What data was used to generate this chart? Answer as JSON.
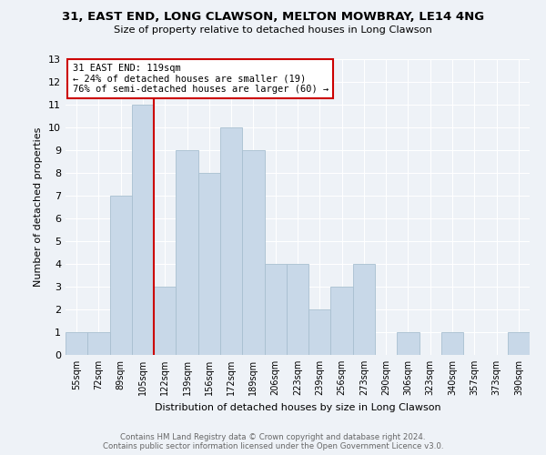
{
  "title": "31, EAST END, LONG CLAWSON, MELTON MOWBRAY, LE14 4NG",
  "subtitle": "Size of property relative to detached houses in Long Clawson",
  "xlabel": "Distribution of detached houses by size in Long Clawson",
  "ylabel": "Number of detached properties",
  "bar_labels": [
    "55sqm",
    "72sqm",
    "89sqm",
    "105sqm",
    "122sqm",
    "139sqm",
    "156sqm",
    "172sqm",
    "189sqm",
    "206sqm",
    "223sqm",
    "239sqm",
    "256sqm",
    "273sqm",
    "290sqm",
    "306sqm",
    "323sqm",
    "340sqm",
    "357sqm",
    "373sqm",
    "390sqm"
  ],
  "bar_values": [
    1,
    1,
    7,
    11,
    3,
    9,
    8,
    10,
    9,
    4,
    4,
    2,
    3,
    4,
    0,
    1,
    0,
    1,
    0,
    0,
    1
  ],
  "bar_color": "#c8d8e8",
  "bar_edge_color": "#a8bfd0",
  "vline_index": 4,
  "vline_color": "#cc0000",
  "annotation_title": "31 EAST END: 119sqm",
  "annotation_line1": "← 24% of detached houses are smaller (19)",
  "annotation_line2": "76% of semi-detached houses are larger (60) →",
  "annotation_box_facecolor": "#ffffff",
  "annotation_box_edgecolor": "#cc0000",
  "ylim": [
    0,
    13
  ],
  "yticks": [
    0,
    1,
    2,
    3,
    4,
    5,
    6,
    7,
    8,
    9,
    10,
    11,
    12,
    13
  ],
  "background_color": "#eef2f7",
  "grid_color": "#ffffff",
  "footer_line1": "Contains HM Land Registry data © Crown copyright and database right 2024.",
  "footer_line2": "Contains public sector information licensed under the Open Government Licence v3.0."
}
